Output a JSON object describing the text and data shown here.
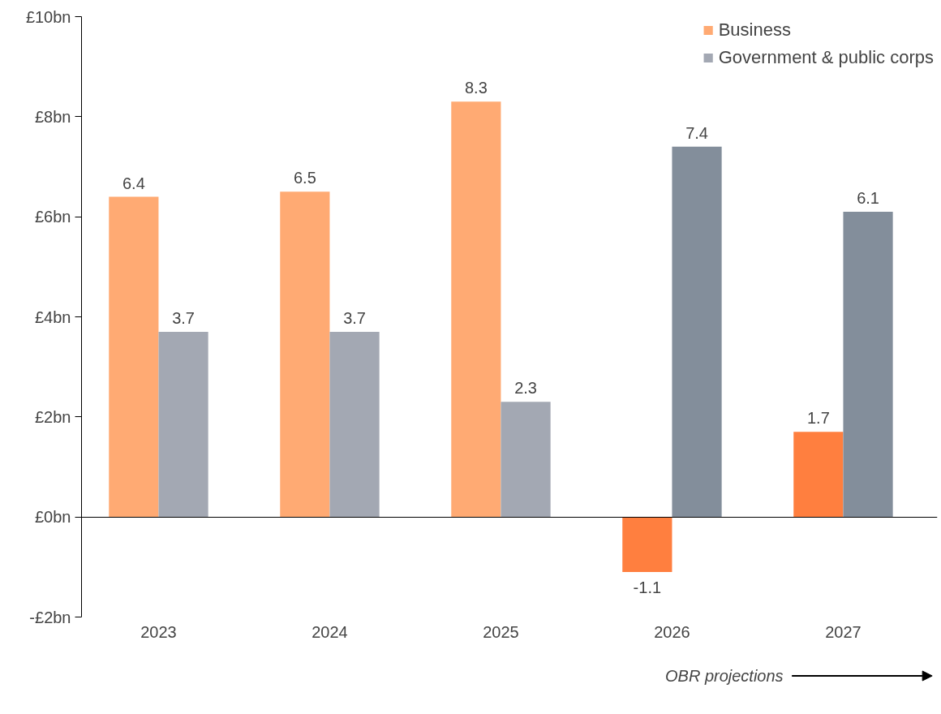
{
  "chart_data": {
    "type": "bar",
    "categories": [
      "2023",
      "2024",
      "2025",
      "2026",
      "2027"
    ],
    "series": [
      {
        "name": "Business",
        "colors": [
          "#ffaa73",
          "#ffaa73",
          "#ffaa73",
          "#ff7f3f",
          "#ff7f3f"
        ],
        "values": [
          6.4,
          6.5,
          8.3,
          -1.1,
          1.7
        ]
      },
      {
        "name": "Government & public corps",
        "colors": [
          "#a3a8b3",
          "#a3a8b3",
          "#a3a8b3",
          "#838e9b",
          "#838e9b"
        ],
        "values": [
          3.7,
          3.7,
          2.3,
          7.4,
          6.1
        ]
      }
    ],
    "ylim": [
      -2,
      10
    ],
    "yticks": [
      {
        "value": -2,
        "label": "-£2bn"
      },
      {
        "value": 0,
        "label": "£0bn"
      },
      {
        "value": 2,
        "label": "£2bn"
      },
      {
        "value": 4,
        "label": "£4bn"
      },
      {
        "value": 6,
        "label": "£6bn"
      },
      {
        "value": 8,
        "label": "£8bn"
      },
      {
        "value": 10,
        "label": "£10bn"
      }
    ],
    "data_labels": true,
    "legend": "top right",
    "annotations": [
      "OBR projections"
    ]
  }
}
